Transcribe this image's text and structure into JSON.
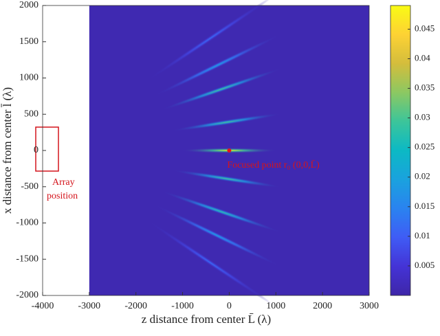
{
  "chart_data": {
    "type": "heatmap",
    "xlabel": "z distance from center L̄ (λ)",
    "ylabel": "x distance from center l̄ (λ)",
    "xlim": [
      -4000,
      3000
    ],
    "xticks": [
      -4000,
      -3000,
      -2000,
      -1000,
      0,
      1000,
      2000,
      3000
    ],
    "ylim": [
      -2000,
      2000
    ],
    "yticks": [
      -2000,
      -1500,
      -1000,
      -500,
      0,
      500,
      1000,
      1500,
      2000
    ],
    "image_zlim": [
      -3000,
      3000
    ],
    "colormap": "parula",
    "clim": [
      0,
      0.049
    ],
    "cticks": [
      0.005,
      0.01,
      0.015,
      0.02,
      0.025,
      0.03,
      0.035,
      0.04,
      0.045
    ],
    "hotspots": {
      "z": [
        0,
        -50,
        -170,
        -255,
        -400,
        -50,
        -170,
        -255,
        -400
      ],
      "x": [
        0,
        390,
        845,
        1175,
        1550,
        -390,
        -845,
        -1175,
        -1550
      ],
      "values": [
        0.049,
        0.03,
        0.03,
        0.02,
        0.012,
        0.03,
        0.028,
        0.02,
        0.012
      ]
    },
    "marker": {
      "z": 0,
      "x": 0,
      "color": "#e8141c"
    },
    "annotations": {
      "array": [
        "Array",
        "position"
      ],
      "focus": "Focused point r₀ (0,0,L̄)"
    }
  }
}
